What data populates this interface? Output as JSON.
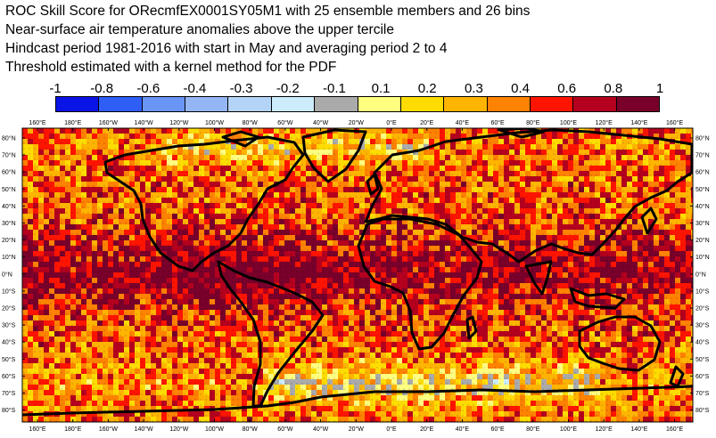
{
  "title": {
    "line1": "ROC Skill Score for ORecmfEX0001SY05M1 with 25 ensemble members and 26 bins",
    "line2": "Near-surface air temperature anomalies above the upper tercile",
    "line3": "Hindcast period 1981-2016 with start in May and averaging period  2 to  4",
    "line4": "Threshold estimated with a kernel method for the PDF"
  },
  "colorbar": {
    "labels": [
      "-1",
      "-0.8",
      "-0.6",
      "-0.4",
      "-0.3",
      "-0.2",
      "-0.1",
      "0.1",
      "0.2",
      "0.3",
      "0.4",
      "0.6",
      "0.8",
      "1"
    ],
    "colors": [
      "#0a14e6",
      "#2e5ef5",
      "#6a95f5",
      "#95b6f5",
      "#b4d4f7",
      "#ccecfb",
      "#aaaaaa",
      "#ffff80",
      "#ffdc00",
      "#ffb400",
      "#ff8200",
      "#ff1400",
      "#b4001e",
      "#78002a"
    ]
  },
  "map": {
    "lon_labels": [
      "160°E",
      "180°E",
      "160°W",
      "140°W",
      "120°W",
      "100°W",
      "80°W",
      "60°W",
      "40°W",
      "20°W",
      "0°E",
      "20°E",
      "40°E",
      "60°E",
      "80°E",
      "100°E",
      "120°E",
      "140°E",
      "160°E"
    ],
    "lat_labels": [
      "80°N",
      "70°N",
      "60°N",
      "50°N",
      "40°N",
      "30°N",
      "20°N",
      "10°N",
      "0°N",
      "10°S",
      "20°S",
      "30°S",
      "40°S",
      "50°S",
      "60°S",
      "70°S",
      "80°S"
    ]
  }
}
